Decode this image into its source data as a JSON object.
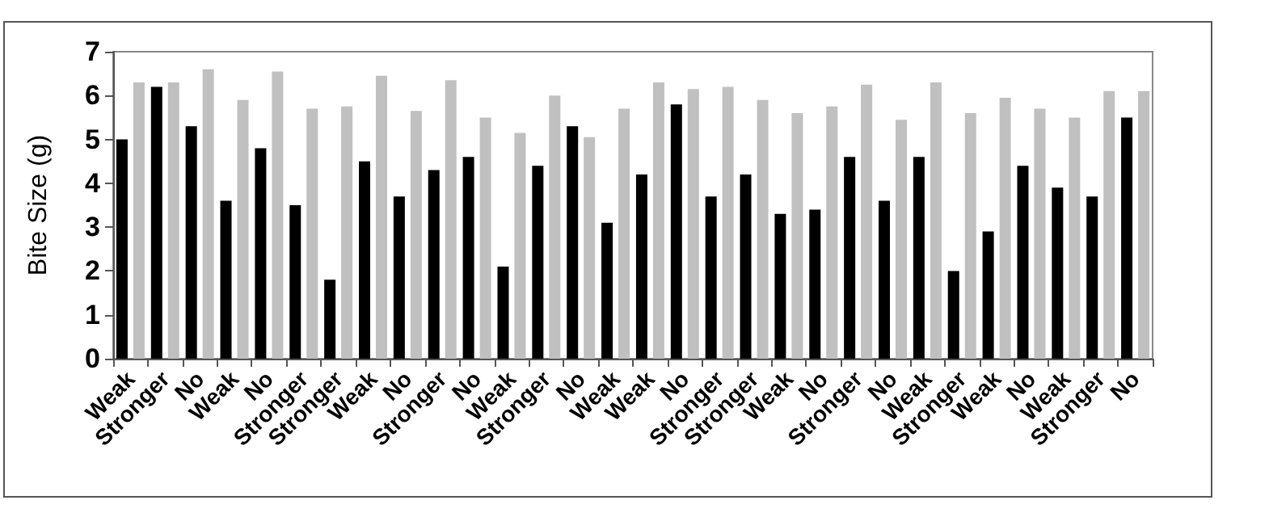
{
  "chart_data": {
    "type": "bar",
    "ylabel": "Bite Size (g)",
    "categories": [
      "Weak",
      "Stronger",
      "No",
      "Weak",
      "No",
      "Stronger",
      "Stronger",
      "Weak",
      "No",
      "Stronger",
      "No",
      "Weak",
      "Stronger",
      "No",
      "Weak",
      "Weak",
      "No",
      "Stronger",
      "Stronger",
      "Weak",
      "No",
      "Stronger",
      "No",
      "Weak",
      "Stronger",
      "Weak",
      "No",
      "Weak",
      "Stronger",
      "No"
    ],
    "series": [
      {
        "color": "#000000",
        "values": [
          5.0,
          6.2,
          5.3,
          3.6,
          4.8,
          3.5,
          1.8,
          4.5,
          3.7,
          4.3,
          4.6,
          2.1,
          4.4,
          5.3,
          3.1,
          4.2,
          5.8,
          3.7,
          4.2,
          3.3,
          3.4,
          4.6,
          3.6,
          4.6,
          2.0,
          2.9,
          4.4,
          3.9,
          3.7,
          5.5
        ]
      },
      {
        "color": "#c0c0c0",
        "values": [
          6.3,
          6.3,
          6.6,
          5.9,
          6.55,
          5.7,
          5.75,
          6.45,
          5.65,
          6.35,
          5.5,
          5.15,
          6.0,
          5.05,
          5.7,
          6.3,
          6.15,
          6.2,
          5.9,
          5.6,
          5.75,
          6.25,
          5.45,
          6.3,
          5.6,
          5.95,
          5.7,
          5.5,
          6.1,
          6.1
        ]
      }
    ],
    "ylim": [
      0,
      7
    ],
    "yticks": [
      0,
      1,
      2,
      3,
      4,
      5,
      6,
      7
    ],
    "grid": false
  }
}
